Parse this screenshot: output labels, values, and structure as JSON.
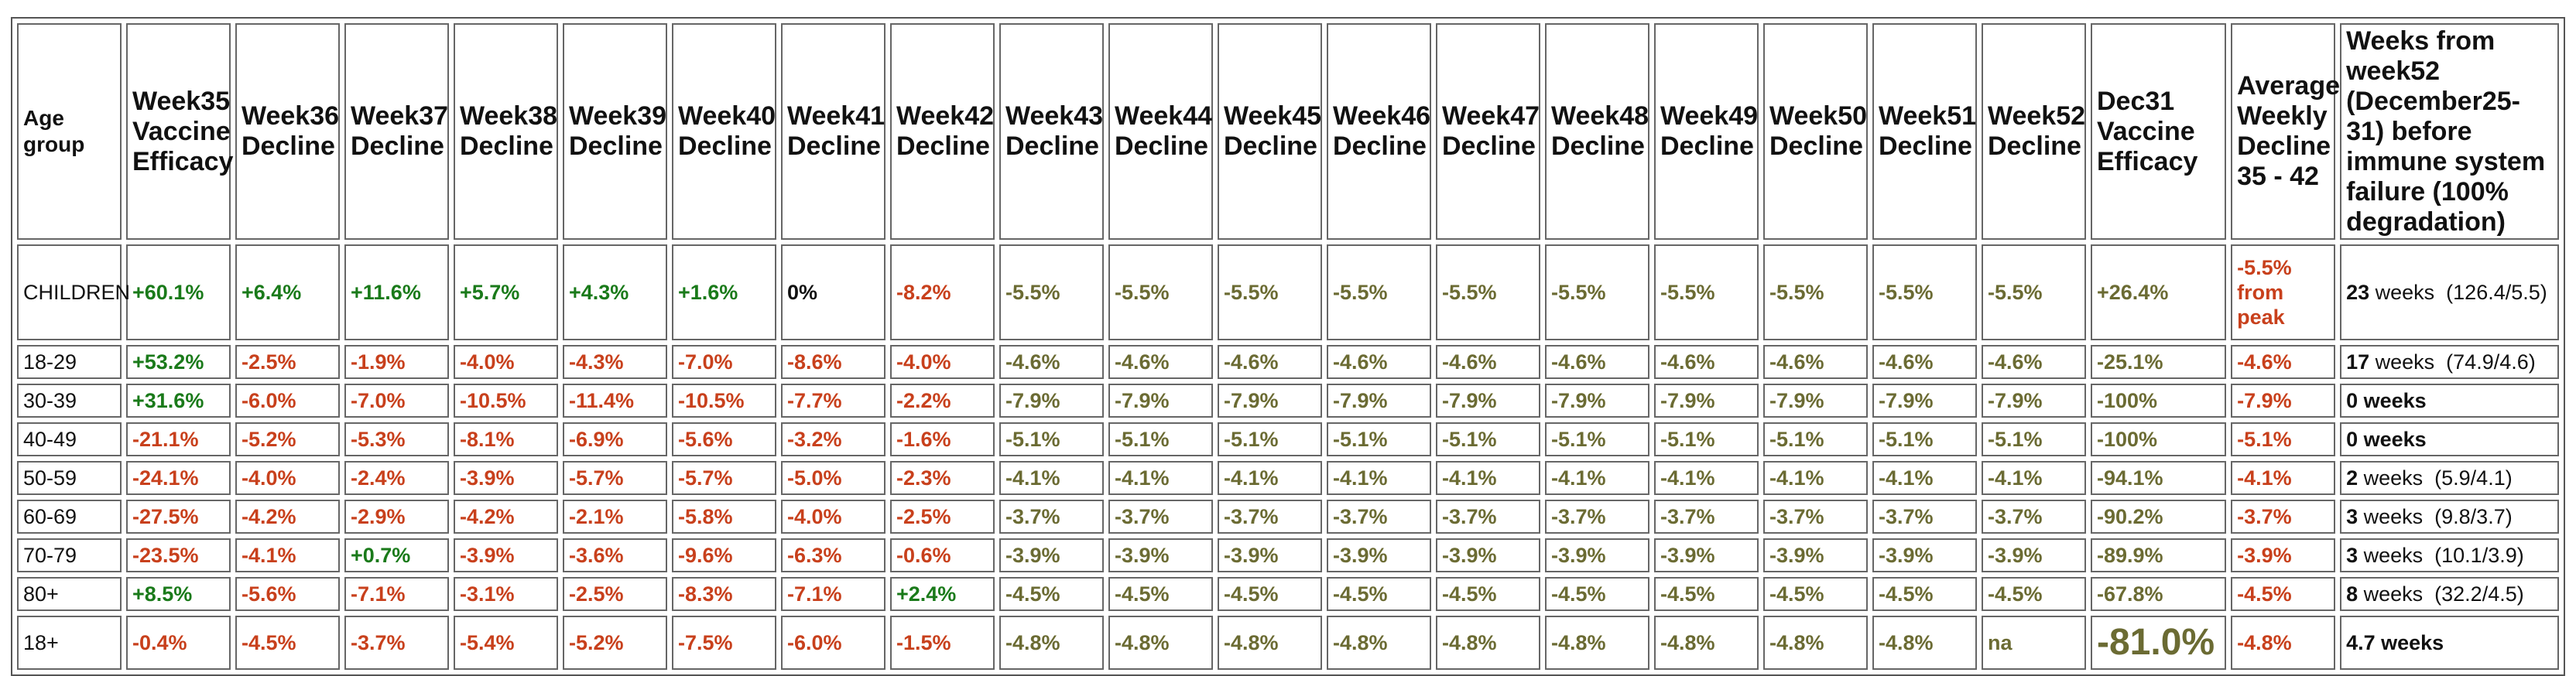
{
  "headers": [
    "Age group",
    "Week35 Vaccine Efficacy",
    "Week36 Decline",
    "Week37 Decline",
    "Week38 Decline",
    "Week39 Decline",
    "Week40 Decline",
    "Week41 Decline",
    "Week42 Decline",
    "Week43 Decline",
    "Week44 Decline",
    "Week45 Decline",
    "Week46 Decline",
    "Week47 Decline",
    "Week48 Decline",
    "Week49 Decline",
    "Week50 Decline",
    "Week51 Decline",
    "Week52 Decline",
    "Dec31 Vaccine Efficacy",
    "Average Weekly Decline 35 - 42",
    "Weeks from week52 (December25-31) before immune system failure (100% degradation)"
  ],
  "colors": {
    "green": "#1a7a1a",
    "red": "#c8401c",
    "olive": "#6b6b33",
    "black": "#111111"
  },
  "rows": [
    {
      "age": "CHILDREN",
      "cells": [
        {
          "v": "+60.1%",
          "c": "g"
        },
        {
          "v": "+6.4%",
          "c": "g"
        },
        {
          "v": "+11.6%",
          "c": "g"
        },
        {
          "v": "+5.7%",
          "c": "g"
        },
        {
          "v": "+4.3%",
          "c": "g"
        },
        {
          "v": "+1.6%",
          "c": "g"
        },
        {
          "v": "0%",
          "c": "k"
        },
        {
          "v": "-8.2%",
          "c": "r"
        },
        {
          "v": "-5.5%",
          "c": "o"
        },
        {
          "v": "-5.5%",
          "c": "o"
        },
        {
          "v": "-5.5%",
          "c": "o"
        },
        {
          "v": "-5.5%",
          "c": "o"
        },
        {
          "v": "-5.5%",
          "c": "o"
        },
        {
          "v": "-5.5%",
          "c": "o"
        },
        {
          "v": "-5.5%",
          "c": "o"
        },
        {
          "v": "-5.5%",
          "c": "o"
        },
        {
          "v": "-5.5%",
          "c": "o"
        },
        {
          "v": "-5.5%",
          "c": "o"
        },
        {
          "v": "+26.4%",
          "c": "o"
        },
        {
          "v": "-5.5% from peak",
          "c": "r"
        }
      ],
      "weeks": {
        "num": "23",
        "label": " weeks",
        "calc": "  (126.4/5.5)"
      }
    },
    {
      "age": "18-29",
      "cells": [
        {
          "v": "+53.2%",
          "c": "g"
        },
        {
          "v": "-2.5%",
          "c": "r"
        },
        {
          "v": "-1.9%",
          "c": "r"
        },
        {
          "v": "-4.0%",
          "c": "r"
        },
        {
          "v": "-4.3%",
          "c": "r"
        },
        {
          "v": "-7.0%",
          "c": "r"
        },
        {
          "v": "-8.6%",
          "c": "r"
        },
        {
          "v": "-4.0%",
          "c": "r"
        },
        {
          "v": "-4.6%",
          "c": "o"
        },
        {
          "v": "-4.6%",
          "c": "o"
        },
        {
          "v": "-4.6%",
          "c": "o"
        },
        {
          "v": "-4.6%",
          "c": "o"
        },
        {
          "v": "-4.6%",
          "c": "o"
        },
        {
          "v": "-4.6%",
          "c": "o"
        },
        {
          "v": "-4.6%",
          "c": "o"
        },
        {
          "v": "-4.6%",
          "c": "o"
        },
        {
          "v": "-4.6%",
          "c": "o"
        },
        {
          "v": "-4.6%",
          "c": "o"
        },
        {
          "v": "-25.1%",
          "c": "o"
        },
        {
          "v": "-4.6%",
          "c": "r"
        }
      ],
      "weeks": {
        "num": "17",
        "label": " weeks",
        "calc": "  (74.9/4.6)"
      }
    },
    {
      "age": "30-39",
      "cells": [
        {
          "v": "+31.6%",
          "c": "g"
        },
        {
          "v": "-6.0%",
          "c": "r"
        },
        {
          "v": "-7.0%",
          "c": "r"
        },
        {
          "v": "-10.5%",
          "c": "r"
        },
        {
          "v": "-11.4%",
          "c": "r"
        },
        {
          "v": "-10.5%",
          "c": "r"
        },
        {
          "v": "-7.7%",
          "c": "r"
        },
        {
          "v": "-2.2%",
          "c": "r"
        },
        {
          "v": "-7.9%",
          "c": "o"
        },
        {
          "v": "-7.9%",
          "c": "o"
        },
        {
          "v": "-7.9%",
          "c": "o"
        },
        {
          "v": "-7.9%",
          "c": "o"
        },
        {
          "v": "-7.9%",
          "c": "o"
        },
        {
          "v": "-7.9%",
          "c": "o"
        },
        {
          "v": "-7.9%",
          "c": "o"
        },
        {
          "v": "-7.9%",
          "c": "o"
        },
        {
          "v": "-7.9%",
          "c": "o"
        },
        {
          "v": "-7.9%",
          "c": "o"
        },
        {
          "v": "-100%",
          "c": "o"
        },
        {
          "v": "-7.9%",
          "c": "r"
        }
      ],
      "weeks": {
        "num": "0",
        "label": " weeks",
        "calc": "",
        "bold": true
      }
    },
    {
      "age": "40-49",
      "cells": [
        {
          "v": "-21.1%",
          "c": "r"
        },
        {
          "v": "-5.2%",
          "c": "r"
        },
        {
          "v": "-5.3%",
          "c": "r"
        },
        {
          "v": "-8.1%",
          "c": "r"
        },
        {
          "v": "-6.9%",
          "c": "r"
        },
        {
          "v": "-5.6%",
          "c": "r"
        },
        {
          "v": "-3.2%",
          "c": "r"
        },
        {
          "v": "-1.6%",
          "c": "r"
        },
        {
          "v": "-5.1%",
          "c": "o"
        },
        {
          "v": "-5.1%",
          "c": "o"
        },
        {
          "v": "-5.1%",
          "c": "o"
        },
        {
          "v": "-5.1%",
          "c": "o"
        },
        {
          "v": "-5.1%",
          "c": "o"
        },
        {
          "v": "-5.1%",
          "c": "o"
        },
        {
          "v": "-5.1%",
          "c": "o"
        },
        {
          "v": "-5.1%",
          "c": "o"
        },
        {
          "v": "-5.1%",
          "c": "o"
        },
        {
          "v": "-5.1%",
          "c": "o"
        },
        {
          "v": "-100%",
          "c": "o"
        },
        {
          "v": "-5.1%",
          "c": "r"
        }
      ],
      "weeks": {
        "num": "0",
        "label": " weeks",
        "calc": "",
        "bold": true
      }
    },
    {
      "age": "50-59",
      "cells": [
        {
          "v": "-24.1%",
          "c": "r"
        },
        {
          "v": "-4.0%",
          "c": "r"
        },
        {
          "v": "-2.4%",
          "c": "r"
        },
        {
          "v": "-3.9%",
          "c": "r"
        },
        {
          "v": "-5.7%",
          "c": "r"
        },
        {
          "v": "-5.7%",
          "c": "r"
        },
        {
          "v": "-5.0%",
          "c": "r"
        },
        {
          "v": "-2.3%",
          "c": "r"
        },
        {
          "v": "-4.1%",
          "c": "o"
        },
        {
          "v": "-4.1%",
          "c": "o"
        },
        {
          "v": "-4.1%",
          "c": "o"
        },
        {
          "v": "-4.1%",
          "c": "o"
        },
        {
          "v": "-4.1%",
          "c": "o"
        },
        {
          "v": "-4.1%",
          "c": "o"
        },
        {
          "v": "-4.1%",
          "c": "o"
        },
        {
          "v": "-4.1%",
          "c": "o"
        },
        {
          "v": "-4.1%",
          "c": "o"
        },
        {
          "v": "-4.1%",
          "c": "o"
        },
        {
          "v": "-94.1%",
          "c": "o"
        },
        {
          "v": "-4.1%",
          "c": "r"
        }
      ],
      "weeks": {
        "num": "2",
        "label": " weeks",
        "calc": "  (5.9/4.1)"
      }
    },
    {
      "age": "60-69",
      "cells": [
        {
          "v": "-27.5%",
          "c": "r"
        },
        {
          "v": "-4.2%",
          "c": "r"
        },
        {
          "v": "-2.9%",
          "c": "r"
        },
        {
          "v": "-4.2%",
          "c": "r"
        },
        {
          "v": "-2.1%",
          "c": "r"
        },
        {
          "v": "-5.8%",
          "c": "r"
        },
        {
          "v": "-4.0%",
          "c": "r"
        },
        {
          "v": "-2.5%",
          "c": "r"
        },
        {
          "v": "-3.7%",
          "c": "o"
        },
        {
          "v": "-3.7%",
          "c": "o"
        },
        {
          "v": "-3.7%",
          "c": "o"
        },
        {
          "v": "-3.7%",
          "c": "o"
        },
        {
          "v": "-3.7%",
          "c": "o"
        },
        {
          "v": "-3.7%",
          "c": "o"
        },
        {
          "v": "-3.7%",
          "c": "o"
        },
        {
          "v": "-3.7%",
          "c": "o"
        },
        {
          "v": "-3.7%",
          "c": "o"
        },
        {
          "v": "-3.7%",
          "c": "o"
        },
        {
          "v": "-90.2%",
          "c": "o"
        },
        {
          "v": "-3.7%",
          "c": "r"
        }
      ],
      "weeks": {
        "num": "3",
        "label": " weeks",
        "calc": "  (9.8/3.7)"
      }
    },
    {
      "age": "70-79",
      "cells": [
        {
          "v": "-23.5%",
          "c": "r"
        },
        {
          "v": "-4.1%",
          "c": "r"
        },
        {
          "v": "+0.7%",
          "c": "g"
        },
        {
          "v": "-3.9%",
          "c": "r"
        },
        {
          "v": "-3.6%",
          "c": "r"
        },
        {
          "v": "-9.6%",
          "c": "r"
        },
        {
          "v": "-6.3%",
          "c": "r"
        },
        {
          "v": "-0.6%",
          "c": "r"
        },
        {
          "v": "-3.9%",
          "c": "o"
        },
        {
          "v": "-3.9%",
          "c": "o"
        },
        {
          "v": "-3.9%",
          "c": "o"
        },
        {
          "v": "-3.9%",
          "c": "o"
        },
        {
          "v": "-3.9%",
          "c": "o"
        },
        {
          "v": "-3.9%",
          "c": "o"
        },
        {
          "v": "-3.9%",
          "c": "o"
        },
        {
          "v": "-3.9%",
          "c": "o"
        },
        {
          "v": "-3.9%",
          "c": "o"
        },
        {
          "v": "-3.9%",
          "c": "o"
        },
        {
          "v": "-89.9%",
          "c": "o"
        },
        {
          "v": "-3.9%",
          "c": "r"
        }
      ],
      "weeks": {
        "num": "3",
        "label": " weeks",
        "calc": "  (10.1/3.9)"
      }
    },
    {
      "age": "80+",
      "cells": [
        {
          "v": "+8.5%",
          "c": "g"
        },
        {
          "v": "-5.6%",
          "c": "r"
        },
        {
          "v": "-7.1%",
          "c": "r"
        },
        {
          "v": "-3.1%",
          "c": "r"
        },
        {
          "v": "-2.5%",
          "c": "r"
        },
        {
          "v": "-8.3%",
          "c": "r"
        },
        {
          "v": "-7.1%",
          "c": "r"
        },
        {
          "v": "+2.4%",
          "c": "g"
        },
        {
          "v": "-4.5%",
          "c": "o"
        },
        {
          "v": "-4.5%",
          "c": "o"
        },
        {
          "v": "-4.5%",
          "c": "o"
        },
        {
          "v": "-4.5%",
          "c": "o"
        },
        {
          "v": "-4.5%",
          "c": "o"
        },
        {
          "v": "-4.5%",
          "c": "o"
        },
        {
          "v": "-4.5%",
          "c": "o"
        },
        {
          "v": "-4.5%",
          "c": "o"
        },
        {
          "v": "-4.5%",
          "c": "o"
        },
        {
          "v": "-4.5%",
          "c": "o"
        },
        {
          "v": "-67.8%",
          "c": "o"
        },
        {
          "v": "-4.5%",
          "c": "r"
        }
      ],
      "weeks": {
        "num": "8",
        "label": " weeks",
        "calc": "  (32.2/4.5)"
      }
    },
    {
      "age": "18+",
      "cells": [
        {
          "v": "-0.4%",
          "c": "r"
        },
        {
          "v": "-4.5%",
          "c": "r"
        },
        {
          "v": "-3.7%",
          "c": "r"
        },
        {
          "v": "-5.4%",
          "c": "r"
        },
        {
          "v": "-5.2%",
          "c": "r"
        },
        {
          "v": "-7.5%",
          "c": "r"
        },
        {
          "v": "-6.0%",
          "c": "r"
        },
        {
          "v": "-1.5%",
          "c": "r"
        },
        {
          "v": "-4.8%",
          "c": "o"
        },
        {
          "v": "-4.8%",
          "c": "o"
        },
        {
          "v": "-4.8%",
          "c": "o"
        },
        {
          "v": "-4.8%",
          "c": "o"
        },
        {
          "v": "-4.8%",
          "c": "o"
        },
        {
          "v": "-4.8%",
          "c": "o"
        },
        {
          "v": "-4.8%",
          "c": "o"
        },
        {
          "v": "-4.8%",
          "c": "o"
        },
        {
          "v": "-4.8%",
          "c": "o"
        },
        {
          "v": "na",
          "c": "o"
        },
        {
          "v": "-81.0%",
          "c": "big"
        },
        {
          "v": "-4.8%",
          "c": "r"
        }
      ],
      "weeks": {
        "num": "4.7",
        "label": " weeks",
        "calc": "",
        "bold": true
      }
    }
  ]
}
